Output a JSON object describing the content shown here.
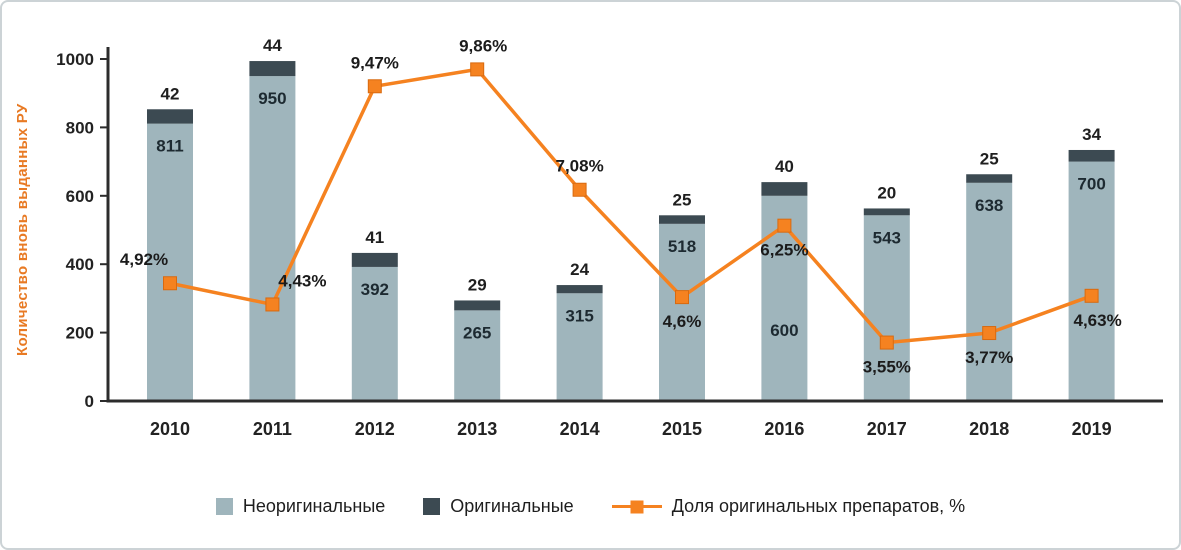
{
  "frame": {
    "background": "#ffffff",
    "border_color": "#ccd3d6"
  },
  "chart_data": {
    "type": "bar",
    "subtype": "stacked-bar-with-line-combo",
    "categories": [
      "2010",
      "2011",
      "2012",
      "2013",
      "2014",
      "2015",
      "2016",
      "2017",
      "2018",
      "2019"
    ],
    "series": [
      {
        "name": "Неоригинальные",
        "kind": "bar",
        "stack": true,
        "color": "#9fb5bc",
        "values": [
          811,
          950,
          392,
          265,
          315,
          518,
          600,
          543,
          638,
          700
        ]
      },
      {
        "name": "Оригинальные",
        "kind": "bar",
        "stack": true,
        "color": "#3c4a52",
        "values": [
          42,
          44,
          41,
          29,
          24,
          25,
          40,
          20,
          25,
          34
        ]
      },
      {
        "name": "Доля оригинальных препаратов, %",
        "kind": "line",
        "color": "#f58220",
        "values": [
          4.92,
          4.43,
          9.47,
          9.86,
          7.08,
          4.6,
          6.25,
          3.55,
          3.77,
          4.63
        ],
        "labels": [
          "4,92%",
          "4,43%",
          "9,47%",
          "9,86%",
          "7,08%",
          "4,6%",
          "6,25%",
          "3,55%",
          "3,77%",
          "4,63%"
        ]
      }
    ],
    "ylabel": "Количество вновь выданных РУ",
    "ylabel_color": "#e87a24",
    "ylim": [
      0,
      1000
    ],
    "yticks": [
      0,
      200,
      400,
      600,
      800,
      1000
    ],
    "y2lim": [
      2.2,
      10.1
    ],
    "grid": false,
    "legend_position": "bottom",
    "axis_color": "#2c2c2c",
    "layout_hints": {
      "pct_label_side": [
        "above",
        "above",
        "above",
        "above",
        "above",
        "below",
        "below",
        "below",
        "below",
        "below"
      ],
      "pct_label_dx": [
        -26,
        30,
        0,
        6,
        0,
        0,
        0,
        0,
        0,
        6
      ],
      "inner_label_dy": [
        28,
        28,
        28,
        28,
        28,
        28,
        140,
        28,
        28,
        28
      ]
    }
  }
}
